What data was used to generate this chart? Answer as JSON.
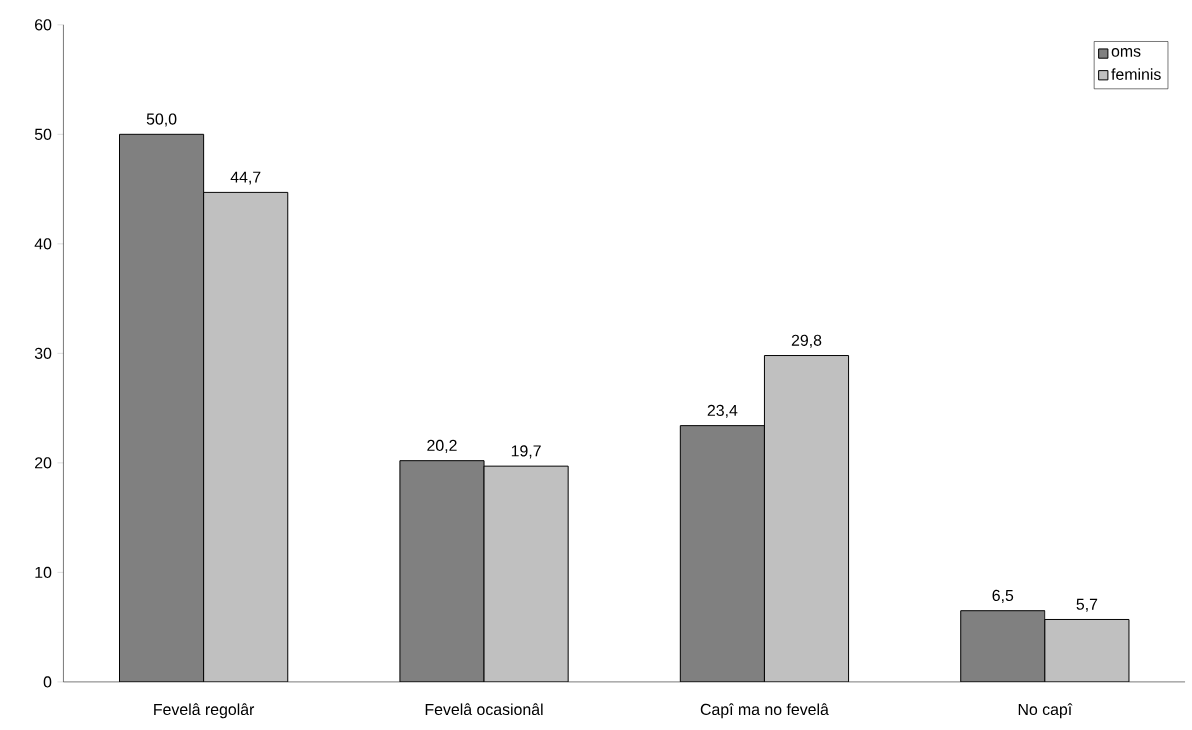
{
  "chart_data": {
    "type": "bar",
    "categories": [
      "Fevelâ regolâr",
      "Fevelâ ocasionâl",
      "Capî ma no fevelâ",
      "No capî"
    ],
    "series": [
      {
        "name": "oms",
        "color": "#808080",
        "values": [
          50.0,
          20.2,
          23.4,
          6.5
        ],
        "value_labels": [
          "50,0",
          "20,2",
          "23,4",
          "6,5"
        ]
      },
      {
        "name": "feminis",
        "color": "#c0c0c0",
        "values": [
          44.7,
          19.7,
          29.8,
          5.7
        ],
        "value_labels": [
          "44,7",
          "19,7",
          "29,8",
          "5,7"
        ]
      }
    ],
    "ylim": [
      0,
      60
    ],
    "yticks": [
      0,
      10,
      20,
      30,
      40,
      50,
      60
    ],
    "legend": "top right",
    "grid": false
  }
}
